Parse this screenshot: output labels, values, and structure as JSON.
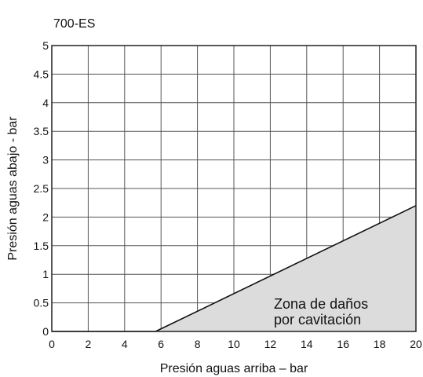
{
  "chart_data": {
    "type": "area",
    "title": "700-ES",
    "xlabel": "Presión aguas arriba – bar",
    "ylabel": "Presión aguas abajo - bar",
    "xlim": [
      0,
      20
    ],
    "ylim": [
      0,
      5
    ],
    "x_ticks": [
      0,
      2,
      4,
      6,
      8,
      10,
      12,
      14,
      16,
      18,
      20
    ],
    "y_ticks": [
      0,
      0.5,
      1,
      1.5,
      2,
      2.5,
      3,
      3.5,
      4,
      4.5,
      5
    ],
    "x_tick_labels": [
      "0",
      "2",
      "4",
      "6",
      "8",
      "10",
      "12",
      "14",
      "16",
      "18",
      "20"
    ],
    "y_tick_labels": [
      "0",
      "0.5",
      "1",
      "1.5",
      "2",
      "2.5",
      "3",
      "3.5",
      "4",
      "4.5",
      "5"
    ],
    "grid": true,
    "series": [
      {
        "x": [
          5.7,
          20
        ],
        "y": [
          0,
          2.2
        ],
        "fill_color": "#dcdcdc"
      }
    ],
    "annotation": {
      "lines": [
        "Zona de daños",
        "por cavitación"
      ],
      "anchor_data": [
        12.2,
        0.4
      ]
    }
  }
}
